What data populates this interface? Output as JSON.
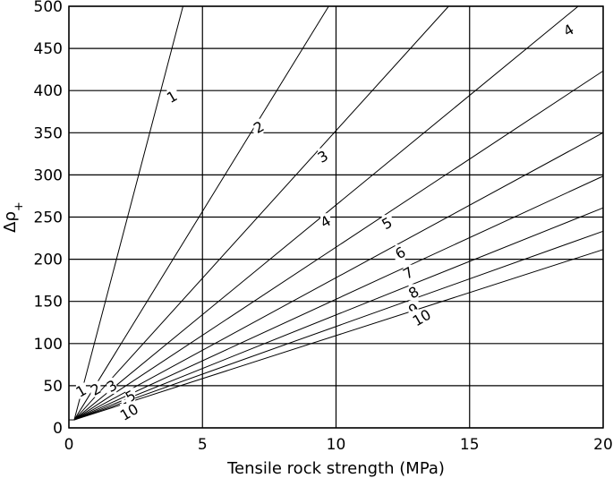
{
  "chart_data": {
    "type": "line",
    "title": "",
    "xlabel": "Tensile rock strength (MPa)",
    "ylabel": "Δρ₊",
    "ylabel_base": "Δρ",
    "ylabel_sub": "+",
    "xlim": [
      0,
      20
    ],
    "ylim": [
      0,
      500
    ],
    "xticks": [
      "0",
      "5",
      "10",
      "15",
      "20"
    ],
    "yticks": [
      "0",
      "50",
      "100",
      "150",
      "200",
      "250",
      "300",
      "350",
      "400",
      "450",
      "500"
    ],
    "grid": true,
    "series": [
      {
        "name": "1",
        "label": "1",
        "slope": 120.5
      },
      {
        "name": "2",
        "label": "2",
        "slope": 51.5
      },
      {
        "name": "3",
        "label": "3",
        "slope": 35.0
      },
      {
        "name": "4",
        "label": "4",
        "slope": 26.0
      },
      {
        "name": "5",
        "label": "5",
        "slope": 20.9
      },
      {
        "name": "6",
        "label": "6",
        "slope": 17.2
      },
      {
        "name": "7",
        "label": "7",
        "slope": 14.6
      },
      {
        "name": "8",
        "label": "8",
        "slope": 12.7
      },
      {
        "name": "9",
        "label": "9",
        "slope": 11.3
      },
      {
        "name": "10",
        "label": "10",
        "slope": 10.2
      }
    ],
    "line_start": [
      0.2,
      9.5
    ],
    "annotations": [
      {
        "text": "1",
        "x": 3.85,
        "y": 393
      },
      {
        "text": "2",
        "x": 7.1,
        "y": 357
      },
      {
        "text": "3",
        "x": 9.5,
        "y": 322
      },
      {
        "text": "4",
        "x": 9.6,
        "y": 245
      },
      {
        "text": "4",
        "x": 18.7,
        "y": 472
      },
      {
        "text": "5",
        "x": 11.9,
        "y": 243
      },
      {
        "text": "6",
        "x": 12.4,
        "y": 208
      },
      {
        "text": "7",
        "x": 12.7,
        "y": 184
      },
      {
        "text": "8",
        "x": 12.9,
        "y": 161
      },
      {
        "text": "9",
        "x": 12.9,
        "y": 141
      },
      {
        "text": "10",
        "x": 13.2,
        "y": 131
      },
      {
        "text": "1",
        "x": 0.45,
        "y": 44
      },
      {
        "text": "2",
        "x": 1.0,
        "y": 46
      },
      {
        "text": "3",
        "x": 1.6,
        "y": 50
      },
      {
        "text": "5",
        "x": 2.3,
        "y": 38
      },
      {
        "text": "5",
        "x": 2.15,
        "y": 24
      },
      {
        "text": "10",
        "x": 2.25,
        "y": 19
      }
    ]
  }
}
